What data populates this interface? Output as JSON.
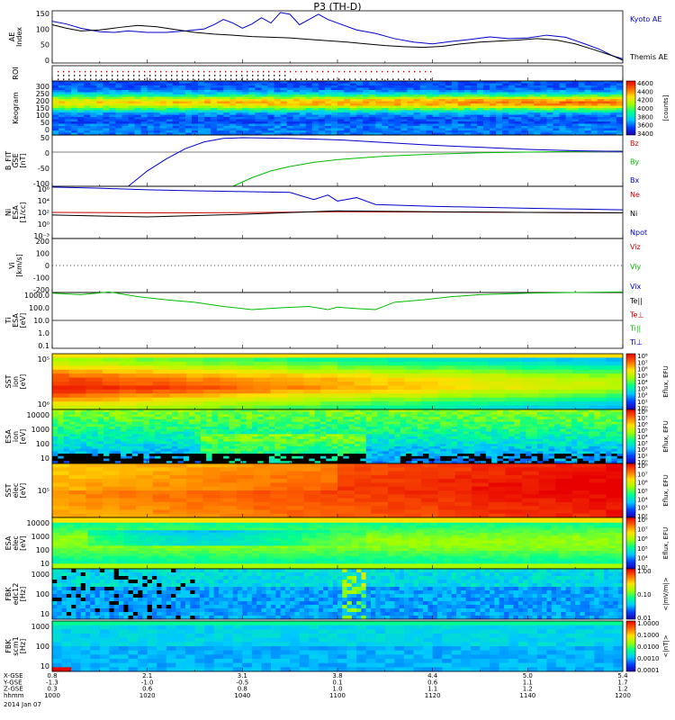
{
  "title": "P3 (TH-D)",
  "footer": {
    "rows": [
      {
        "label": "X-GSE",
        "values": [
          "0.8",
          "2.1",
          "3.1",
          "3.8",
          "4.4",
          "5.0",
          "5.4"
        ]
      },
      {
        "label": "Y-GSE",
        "values": [
          "-1.3",
          "-1.0",
          "-0.5",
          "0.1",
          "0.6",
          "1.1",
          "1.7"
        ]
      },
      {
        "label": "Z-GSE",
        "values": [
          "0.3",
          "0.6",
          "0.8",
          "1.0",
          "1.1",
          "1.2",
          "1.2"
        ]
      },
      {
        "label": "hhmm",
        "values": [
          "1000",
          "1020",
          "1040",
          "1100",
          "1120",
          "1140",
          "1200"
        ]
      }
    ],
    "date": "2014 Jan 07"
  },
  "chart_data": [
    {
      "type": "line",
      "ylabel": "AE Index",
      "ylim": [
        0,
        150
      ],
      "yticks": [
        "0",
        "50",
        "100",
        "150"
      ],
      "series": [
        {
          "name": "Kyoto AE",
          "color": "#0000cc",
          "x": [
            1000,
            1003,
            1006,
            1010,
            1013,
            1016,
            1020,
            1024,
            1028,
            1032,
            1034,
            1036,
            1038,
            1040,
            1042,
            1044,
            1046,
            1048,
            1050,
            1052,
            1054,
            1056,
            1058,
            1100,
            1104,
            1108,
            1112,
            1116,
            1120,
            1124,
            1128,
            1132,
            1136,
            1140,
            1144,
            1148,
            1152,
            1155,
            1158,
            1200
          ],
          "y": [
            120,
            112,
            100,
            90,
            88,
            92,
            88,
            88,
            92,
            98,
            110,
            125,
            115,
            100,
            112,
            130,
            115,
            145,
            140,
            110,
            125,
            140,
            125,
            115,
            95,
            85,
            70,
            60,
            55,
            62,
            68,
            75,
            70,
            72,
            80,
            74,
            55,
            40,
            20,
            12
          ]
        },
        {
          "name": "Themis AE",
          "color": "#000000",
          "x": [
            1000,
            1003,
            1006,
            1010,
            1014,
            1018,
            1022,
            1026,
            1030,
            1034,
            1038,
            1042,
            1046,
            1050,
            1054,
            1058,
            1102,
            1106,
            1110,
            1114,
            1118,
            1122,
            1126,
            1130,
            1134,
            1138,
            1142,
            1146,
            1150,
            1154,
            1158,
            1200
          ],
          "y": [
            110,
            100,
            92,
            95,
            102,
            108,
            104,
            96,
            88,
            83,
            80,
            76,
            74,
            72,
            68,
            64,
            60,
            55,
            50,
            47,
            45,
            48,
            55,
            60,
            63,
            66,
            70,
            66,
            55,
            38,
            20,
            8
          ]
        }
      ]
    },
    {
      "type": "scatter",
      "ylabel": "ROI",
      "note": "dotted region-of-interest flags"
    },
    {
      "type": "heatmap",
      "ylabel": "Keogram",
      "ylim": [
        0,
        300
      ],
      "yticks": [
        "0",
        "50",
        "100",
        "150",
        "200",
        "250",
        "300"
      ],
      "colorbar": {
        "label": "[counts]",
        "ticks": [
          "3400",
          "3600",
          "3800",
          "4000",
          "4200",
          "4400",
          "4600"
        ]
      }
    },
    {
      "type": "line",
      "ylabel": "B_FIT GSE [nT]",
      "ylim": [
        -100,
        50
      ],
      "yticks": [
        "-100",
        "-50",
        "0",
        "50"
      ],
      "series": [
        {
          "name": "Bz",
          "color": "#cc0000",
          "x": [],
          "y": []
        },
        {
          "name": "By",
          "color": "#00bb00",
          "x": [
            1038,
            1042,
            1046,
            1050,
            1055,
            1100,
            1110,
            1120,
            1130,
            1140,
            1150,
            1200
          ],
          "y": [
            -100,
            -75,
            -55,
            -42,
            -30,
            -22,
            -12,
            -6,
            -2,
            0,
            2,
            3
          ]
        },
        {
          "name": "Bx",
          "color": "#0000cc",
          "x": [
            1016,
            1020,
            1024,
            1028,
            1032,
            1036,
            1040,
            1050,
            1100,
            1110,
            1120,
            1130,
            1140,
            1150,
            1200
          ],
          "y": [
            -100,
            -55,
            -20,
            10,
            30,
            40,
            42,
            40,
            36,
            28,
            20,
            14,
            8,
            4,
            2
          ]
        }
      ]
    },
    {
      "type": "line",
      "ylabel": "Ni ESA [1/cc]",
      "yscale": "log",
      "ylim": [
        0.001,
        1000
      ],
      "yticks": [
        "10⁻³",
        "10⁰",
        "10²",
        "10⁴",
        "10⁶"
      ],
      "series": [
        {
          "name": "Ne",
          "color": "#cc0000",
          "x": [
            1000,
            1020,
            1040,
            1100,
            1120,
            1140,
            1200
          ],
          "y": [
            1.0,
            0.9,
            0.95,
            1.2,
            1.1,
            1.0,
            0.9
          ]
        },
        {
          "name": "Ni",
          "color": "#000000",
          "x": [
            1000,
            1020,
            1040,
            1100,
            1120,
            1140,
            1200
          ],
          "y": [
            0.5,
            0.3,
            0.6,
            1.5,
            1.2,
            1.0,
            0.9
          ]
        },
        {
          "name": "Npot",
          "color": "#0000cc",
          "x": [
            1000,
            1010,
            1020,
            1030,
            1040,
            1050,
            1055,
            1058,
            1100,
            1104,
            1108,
            1120,
            1140,
            1200
          ],
          "y": [
            800,
            600,
            400,
            300,
            250,
            200,
            30,
            100,
            20,
            50,
            8,
            5,
            3,
            2
          ]
        }
      ]
    },
    {
      "type": "line",
      "ylabel": "Vi [km/s]",
      "ylim": [
        -200,
        200
      ],
      "yticks": [
        "-200",
        "-100",
        "0",
        "100",
        "200"
      ],
      "series": [
        {
          "name": "Viz",
          "color": "#cc0000",
          "x": [],
          "y": []
        },
        {
          "name": "Viy",
          "color": "#00bb00",
          "x": [],
          "y": []
        },
        {
          "name": "Vix",
          "color": "#0000cc",
          "x": [],
          "y": []
        }
      ]
    },
    {
      "type": "line",
      "ylabel": "Ti ESA [eV]",
      "yscale": "log",
      "ylim": [
        0.1,
        1000
      ],
      "yticks": [
        "0.1",
        "1.0",
        "10.0",
        "100.0",
        "1000.0"
      ],
      "series": [
        {
          "name": "Te||",
          "color": "#000000",
          "x": [],
          "y": []
        },
        {
          "name": "Te⊥",
          "color": "#cc0000",
          "x": [],
          "y": []
        },
        {
          "name": "Ti||",
          "color": "#00bb00",
          "x": [
            1000,
            1006,
            1012,
            1018,
            1024,
            1030,
            1036,
            1042,
            1048,
            1054,
            1058,
            1100,
            1104,
            1108,
            1112,
            1118,
            1124,
            1130,
            1140,
            1150,
            1200
          ],
          "y": [
            900,
            700,
            1100,
            500,
            300,
            200,
            100,
            60,
            80,
            100,
            60,
            90,
            70,
            60,
            200,
            300,
            500,
            700,
            900,
            1000,
            1100
          ]
        },
        {
          "name": "Ti⊥",
          "color": "#0000cc",
          "x": [],
          "y": []
        }
      ]
    },
    {
      "type": "heatmap",
      "ylabel": "SST ion [eV]",
      "yticks": [
        "10⁶",
        "10⁵"
      ],
      "colorbar": {
        "label": "Eflux, EFU",
        "ticks": [
          "10⁰",
          "10¹",
          "10²",
          "10³",
          "10⁴",
          "10⁵",
          "10⁶",
          "10⁷",
          "10⁸"
        ]
      }
    },
    {
      "type": "heatmap",
      "ylabel": "ESA ion [eV]",
      "yscale": "log",
      "yticks": [
        "10",
        "100",
        "1000",
        "10000"
      ],
      "colorbar": {
        "label": "Eflux, EFU",
        "ticks": [
          "10⁰",
          "10¹",
          "10²",
          "10³",
          "10⁴",
          "10⁵",
          "10⁶",
          "10⁷",
          "10⁸"
        ]
      }
    },
    {
      "type": "heatmap",
      "ylabel": "SST elec [eV]",
      "yticks": [
        "10⁵"
      ],
      "colorbar": {
        "label": "Eflux, EFU",
        "ticks": [
          "10²",
          "10³",
          "10⁴",
          "10⁵",
          "10⁶",
          "10⁷",
          "10⁸"
        ]
      }
    },
    {
      "type": "heatmap",
      "ylabel": "ESA elec [eV]",
      "yscale": "log",
      "yticks": [
        "10",
        "100",
        "1000",
        "10000"
      ],
      "colorbar": {
        "label": "Eflux, EFU",
        "ticks": [
          "10³",
          "10⁴",
          "10⁵",
          "10⁶",
          "10⁷",
          "10⁸"
        ]
      }
    },
    {
      "type": "heatmap",
      "ylabel": "FBK edc12 [Hz]",
      "yscale": "log",
      "yticks": [
        "10",
        "100",
        "1000"
      ],
      "colorbar": {
        "label": "<|mV/m|>",
        "ticks": [
          "0.01",
          "0.10",
          "1.00"
        ]
      }
    },
    {
      "type": "heatmap",
      "ylabel": "FBK scm1 [Hz]",
      "yscale": "log",
      "yticks": [
        "10",
        "100",
        "1000"
      ],
      "colorbar": {
        "label": "<|nT|>",
        "ticks": [
          "0.0001",
          "0.0010",
          "0.0100",
          "0.1000",
          "1.0000"
        ]
      }
    }
  ]
}
